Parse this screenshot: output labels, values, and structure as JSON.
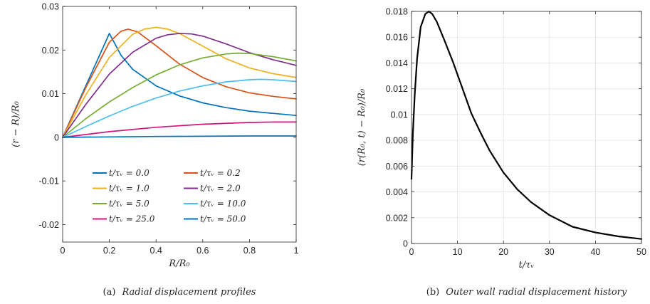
{
  "chart_data": [
    {
      "type": "line",
      "caption_label": "(a)",
      "caption_text": "Radial displacement profiles",
      "xlabel": "R/R₀",
      "ylabel": "(r − R)/R₀",
      "xlim": [
        0,
        1
      ],
      "ylim": [
        -0.024,
        0.03
      ],
      "xticks": [
        0,
        0.2,
        0.4,
        0.6,
        0.8,
        1
      ],
      "xtick_labels": [
        "0",
        "0.2",
        "0.4",
        "0.6",
        "0.8",
        "1"
      ],
      "yticks": [
        -0.02,
        -0.01,
        0,
        0.01,
        0.02,
        0.03
      ],
      "ytick_labels": [
        "-0.02",
        "-0.01",
        "0",
        "0.01",
        "0.02",
        "0.03"
      ],
      "grid": false,
      "legend_position": "lower-center",
      "series": [
        {
          "name": "t/τᵥ = 0.0",
          "color": "#0072BD",
          "x": [
            0,
            0.2,
            0.25,
            0.3,
            0.4,
            0.5,
            0.6,
            0.7,
            0.8,
            0.9,
            1.0
          ],
          "y": [
            0,
            0.0238,
            0.0188,
            0.0156,
            0.0118,
            0.0095,
            0.0079,
            0.0068,
            0.006,
            0.0055,
            0.005
          ]
        },
        {
          "name": "t/τᵥ = 0.2",
          "color": "#D95319",
          "x": [
            0,
            0.1,
            0.2,
            0.25,
            0.28,
            0.32,
            0.4,
            0.5,
            0.6,
            0.7,
            0.8,
            0.9,
            1.0
          ],
          "y": [
            0,
            0.0115,
            0.0218,
            0.0243,
            0.0248,
            0.0242,
            0.021,
            0.0168,
            0.0137,
            0.0116,
            0.0102,
            0.0094,
            0.0088
          ]
        },
        {
          "name": "t/τᵥ = 1.0",
          "color": "#EDB120",
          "x": [
            0,
            0.1,
            0.2,
            0.3,
            0.35,
            0.4,
            0.45,
            0.5,
            0.6,
            0.7,
            0.8,
            0.9,
            1.0
          ],
          "y": [
            0,
            0.0098,
            0.0183,
            0.0236,
            0.0248,
            0.0252,
            0.0248,
            0.0238,
            0.0209,
            0.018,
            0.0159,
            0.0146,
            0.0137
          ]
        },
        {
          "name": "t/τᵥ = 2.0",
          "color": "#7E2F8E",
          "x": [
            0,
            0.1,
            0.2,
            0.3,
            0.4,
            0.45,
            0.5,
            0.55,
            0.6,
            0.7,
            0.8,
            0.9,
            1.0
          ],
          "y": [
            0,
            0.0076,
            0.0145,
            0.0195,
            0.0227,
            0.0235,
            0.0238,
            0.0237,
            0.0232,
            0.0214,
            0.0194,
            0.0178,
            0.0165
          ]
        },
        {
          "name": "t/τᵥ = 5.0",
          "color": "#77AC30",
          "x": [
            0,
            0.1,
            0.2,
            0.3,
            0.4,
            0.5,
            0.6,
            0.7,
            0.75,
            0.8,
            0.9,
            1.0
          ],
          "y": [
            0,
            0.0043,
            0.0081,
            0.0114,
            0.0143,
            0.0166,
            0.0182,
            0.0191,
            0.0193,
            0.0192,
            0.0185,
            0.0175
          ]
        },
        {
          "name": "t/τᵥ = 10.0",
          "color": "#4DBEEE",
          "x": [
            0,
            0.1,
            0.2,
            0.3,
            0.4,
            0.5,
            0.6,
            0.7,
            0.8,
            0.85,
            0.9,
            1.0
          ],
          "y": [
            0,
            0.0025,
            0.0049,
            0.0071,
            0.009,
            0.0106,
            0.0118,
            0.0127,
            0.0132,
            0.0133,
            0.0132,
            0.0128
          ]
        },
        {
          "name": "t/τᵥ = 25.0",
          "color": "#D4147A",
          "x": [
            0,
            0.2,
            0.4,
            0.6,
            0.8,
            0.9,
            1.0
          ],
          "y": [
            0,
            0.0013,
            0.0023,
            0.003,
            0.0034,
            0.0035,
            0.0035
          ]
        },
        {
          "name": "t/τᵥ = 50.0",
          "color": "#0072BD",
          "x": [
            0,
            0.2,
            0.4,
            0.6,
            0.8,
            1.0
          ],
          "y": [
            0,
            0.0001,
            0.0002,
            0.00025,
            0.0003,
            0.0003
          ]
        }
      ]
    },
    {
      "type": "line",
      "caption_label": "(b)",
      "caption_text": "Outer wall radial displacement history",
      "xlabel": "t/τᵥ",
      "ylabel": "(r(R₀, t) − R₀)/R₀",
      "xlim": [
        0,
        50
      ],
      "ylim": [
        0,
        0.018
      ],
      "xticks": [
        0,
        10,
        20,
        30,
        40,
        50
      ],
      "xtick_labels": [
        "0",
        "10",
        "20",
        "30",
        "40",
        "50"
      ],
      "yticks": [
        0,
        0.002,
        0.004,
        0.006,
        0.008,
        0.01,
        0.012,
        0.014,
        0.016,
        0.018
      ],
      "ytick_labels": [
        "0",
        "0.002",
        "0.004",
        "0.006",
        "0.008",
        "0.01",
        "0.012",
        "0.014",
        "0.016",
        "0.018"
      ],
      "grid": true,
      "series": [
        {
          "color": "#000000",
          "x": [
            0,
            0.3,
            0.7,
            1.2,
            2,
            3,
            3.8,
            4.5,
            5.5,
            7,
            9,
            11,
            13,
            15,
            17,
            20,
            23,
            26,
            30,
            35,
            40,
            45,
            50
          ],
          "y": [
            0.005,
            0.0085,
            0.0115,
            0.0143,
            0.0168,
            0.0178,
            0.018,
            0.0178,
            0.0172,
            0.0159,
            0.0141,
            0.0121,
            0.0101,
            0.0086,
            0.0072,
            0.0055,
            0.0042,
            0.0032,
            0.0022,
            0.0013,
            0.00085,
            0.00055,
            0.00035
          ]
        }
      ]
    }
  ]
}
